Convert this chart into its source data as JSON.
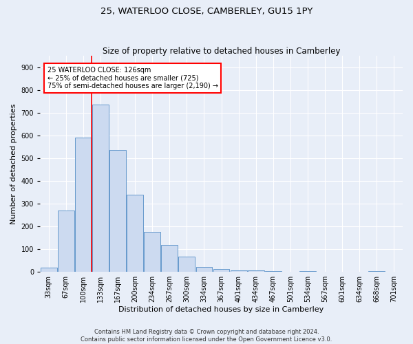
{
  "title": "25, WATERLOO CLOSE, CAMBERLEY, GU15 1PY",
  "subtitle": "Size of property relative to detached houses in Camberley",
  "xlabel": "Distribution of detached houses by size in Camberley",
  "ylabel": "Number of detached properties",
  "categories": [
    "33sqm",
    "67sqm",
    "100sqm",
    "133sqm",
    "167sqm",
    "200sqm",
    "234sqm",
    "267sqm",
    "300sqm",
    "334sqm",
    "367sqm",
    "401sqm",
    "434sqm",
    "467sqm",
    "501sqm",
    "534sqm",
    "567sqm",
    "601sqm",
    "634sqm",
    "668sqm",
    "701sqm"
  ],
  "bar_heights": [
    20,
    270,
    590,
    735,
    535,
    340,
    175,
    120,
    68,
    22,
    13,
    8,
    8,
    5,
    0,
    5,
    0,
    0,
    0,
    5,
    0
  ],
  "bar_color": "#ccdaf0",
  "bar_edge_color": "#6699cc",
  "vline_color": "red",
  "annotation_text": "25 WATERLOO CLOSE: 126sqm\n← 25% of detached houses are smaller (725)\n75% of semi-detached houses are larger (2,190) →",
  "annotation_box_color": "white",
  "annotation_box_edge": "red",
  "ylim": [
    0,
    950
  ],
  "yticks": [
    0,
    100,
    200,
    300,
    400,
    500,
    600,
    700,
    800,
    900
  ],
  "background_color": "#e8eef8",
  "grid_color": "#ffffff",
  "footer": "Contains HM Land Registry data © Crown copyright and database right 2024.\nContains public sector information licensed under the Open Government Licence v3.0.",
  "title_fontsize": 9.5,
  "subtitle_fontsize": 8.5,
  "xlabel_fontsize": 8,
  "ylabel_fontsize": 8,
  "tick_fontsize": 7,
  "annotation_fontsize": 7,
  "footer_fontsize": 6
}
